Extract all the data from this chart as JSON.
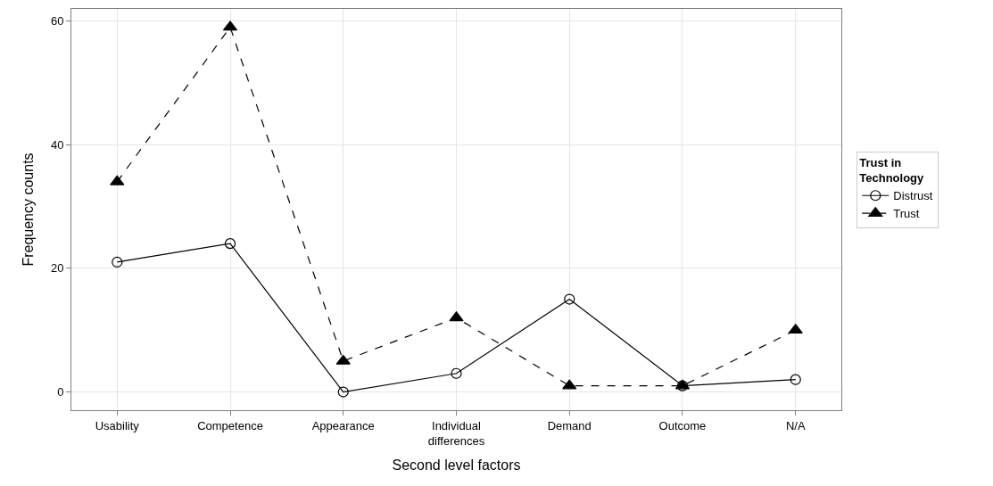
{
  "chart_data": {
    "type": "line",
    "xlabel": "Second level factors",
    "ylabel": "Frequency counts",
    "legend_title": "Trust in\nTechnology",
    "categories": [
      "Usability",
      "Competence",
      "Appearance",
      "Individual\ndifferences",
      "Demand",
      "Outcome",
      "N/A"
    ],
    "series": [
      {
        "name": "Distrust",
        "color": "#000000",
        "marker": "circle",
        "line_style": "solid",
        "values": [
          21,
          24,
          0,
          3,
          15,
          1,
          2
        ]
      },
      {
        "name": "Trust",
        "color": "#000000",
        "marker": "triangle",
        "line_style": "dashed",
        "values": [
          34,
          59,
          5,
          12,
          1,
          1,
          10
        ]
      }
    ],
    "ylim": [
      -2.95,
      61.95
    ],
    "yticks": [
      0,
      20,
      40,
      60
    ],
    "grid": true,
    "legend": "right"
  }
}
